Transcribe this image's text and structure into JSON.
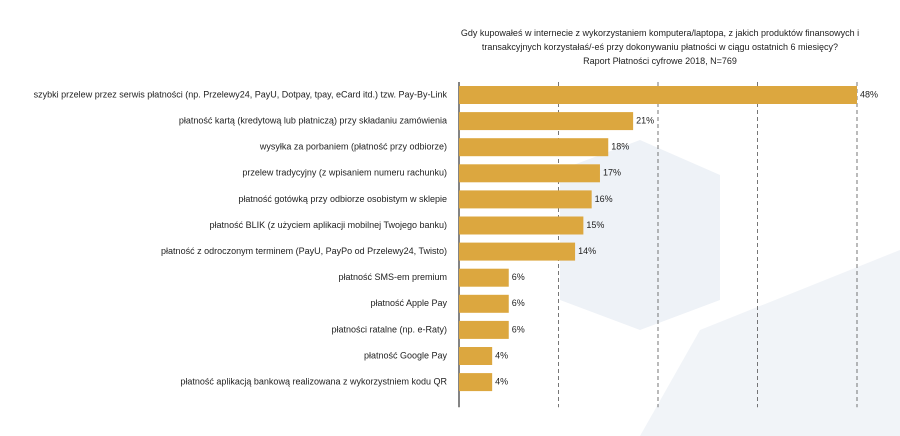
{
  "chart_data": {
    "type": "bar",
    "orientation": "horizontal",
    "title": "Gdy kupowałeś w internecie z wykorzystaniem komputera/laptopa, z jakich produktów finansowych i transakcyjnych korzystałaś/-eś przy dokonywaniu płatności w ciągu ostatnich 6 miesięcy?",
    "subtitle": "Raport Płatności cyfrowe 2018, N=769",
    "categories": [
      "szybki przelew przez serwis płatności (np. Przelewy24, PayU, Dotpay, tpay, eCard itd.) tzw. Pay-By-Link",
      "płatność kartą (kredytową lub płatniczą) przy składaniu zamówienia",
      "wysyłka za porbaniem (płatność przy odbiorze)",
      "przelew tradycyjny (z wpisaniem numeru rachunku)",
      "płatność gotówką przy odbiorze osobistym w sklepie",
      "płatność BLIK (z użyciem aplikacji mobilnej Twojego banku)",
      "płatność z odroczonym terminem (PayU, PayPo od Przelewy24, Twisto)",
      "płatność SMS-em premium",
      "płatność Apple Pay",
      "płatności ratalne (np. e-Raty)",
      "płatność Google Pay",
      "płatność aplikacją bankową realizowana z wykorzystniem kodu QR"
    ],
    "values": [
      48,
      21,
      18,
      17,
      16,
      15,
      14,
      6,
      6,
      6,
      4,
      4
    ],
    "value_labels": [
      "48%",
      "21%",
      "18%",
      "17%",
      "16%",
      "15%",
      "14%",
      "6%",
      "6%",
      "6%",
      "4%",
      "4%"
    ],
    "color": "#dca73f",
    "xlim": [
      0,
      48
    ],
    "xticks": [
      0,
      12,
      24,
      36,
      48
    ],
    "grid": true
  }
}
